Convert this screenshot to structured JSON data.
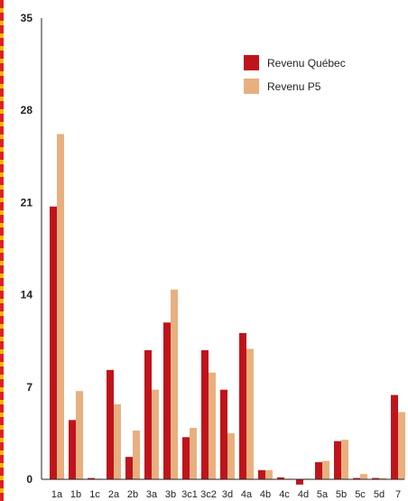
{
  "chart_data": {
    "type": "bar",
    "categories": [
      "1a",
      "1b",
      "1c",
      "2a",
      "2b",
      "3a",
      "3b",
      "3c1",
      "3c2",
      "3d",
      "4a",
      "4b",
      "4c",
      "4d",
      "5a",
      "5b",
      "5c",
      "5d",
      "7"
    ],
    "series": [
      {
        "name": "Revenu Québec",
        "color": "#c0141c",
        "values": [
          20.7,
          4.5,
          0.1,
          8.3,
          1.7,
          9.8,
          11.9,
          3.2,
          9.8,
          6.8,
          11.1,
          0.7,
          0.15,
          -0.4,
          1.3,
          2.9,
          0.1,
          0.1,
          6.4
        ]
      },
      {
        "name": "Revenu P5",
        "color": "#e8b07e",
        "values": [
          26.2,
          6.7,
          0.05,
          5.7,
          3.7,
          6.8,
          14.4,
          3.9,
          8.1,
          3.5,
          9.9,
          0.7,
          0.05,
          0.05,
          1.4,
          3.0,
          0.4,
          0.1,
          5.1
        ]
      }
    ],
    "yticks": [
      "0",
      "7",
      "14",
      "21",
      "28",
      "35"
    ],
    "ylim": [
      0,
      35
    ],
    "grid": false,
    "legend_position": "top-right",
    "border_color": "#e02020",
    "border_dash_color": "#f2b800"
  }
}
